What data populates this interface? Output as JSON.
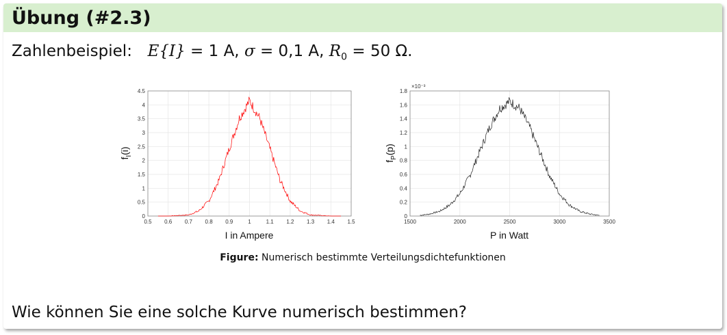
{
  "slide": {
    "title": "Übung (#2.3)",
    "example_intro": "Zahlenbeispiel:",
    "example_parts": {
      "e_label": "E{I}",
      "e_value": "= 1 A,",
      "sigma_label": "σ",
      "sigma_value": "= 0,1 A,",
      "r_label": "R",
      "r_sub": "0",
      "r_value": "= 50 Ω."
    },
    "caption_prefix": "Figure:",
    "caption_text": "Numerisch bestimmte Verteilungsdichtefunktionen",
    "question": "Wie können Sie eine solche Kurve numerisch bestimmen?"
  },
  "colors": {
    "header_bg": "#d8efcf",
    "curve_left": "#ff0000",
    "curve_right": "#222222"
  },
  "chart_data": [
    {
      "type": "line",
      "xlabel": "I in Ampere",
      "ylabel": "f_I(i)",
      "xlim": [
        0.5,
        1.5
      ],
      "ylim": [
        0,
        4.5
      ],
      "xticks": [
        0.5,
        0.6,
        0.7,
        0.8,
        0.9,
        1,
        1.1,
        1.2,
        1.3,
        1.4,
        1.5
      ],
      "yticks": [
        0,
        0.5,
        1,
        1.5,
        2,
        2.5,
        3,
        3.5,
        4,
        4.5
      ],
      "grid": true,
      "series": [
        {
          "color": "#ff0000",
          "x": [
            0.55,
            0.6,
            0.65,
            0.7,
            0.75,
            0.8,
            0.85,
            0.9,
            0.95,
            1.0,
            1.05,
            1.1,
            1.15,
            1.2,
            1.25,
            1.3,
            1.35,
            1.4,
            1.45
          ],
          "y": [
            0.0,
            0.0,
            0.02,
            0.04,
            0.18,
            0.54,
            1.29,
            2.42,
            3.52,
            4.15,
            3.52,
            2.42,
            1.29,
            0.54,
            0.18,
            0.04,
            0.02,
            0.0,
            0.0
          ]
        }
      ]
    },
    {
      "type": "line",
      "xlabel": "P in Watt",
      "ylabel": "f_P(p)",
      "y_exponent_label": "×10⁻³",
      "xlim": [
        1500,
        3500
      ],
      "ylim": [
        0,
        1.8
      ],
      "xticks": [
        1500,
        2000,
        2500,
        3000,
        3500
      ],
      "yticks": [
        0,
        0.2,
        0.4,
        0.6,
        0.8,
        1,
        1.2,
        1.4,
        1.6,
        1.8
      ],
      "grid": true,
      "series": [
        {
          "color": "#222222",
          "x": [
            1600,
            1700,
            1800,
            1900,
            2000,
            2100,
            2200,
            2300,
            2400,
            2500,
            2600,
            2700,
            2800,
            2900,
            3000,
            3100,
            3200,
            3300,
            3400
          ],
          "y": [
            0.01,
            0.03,
            0.07,
            0.16,
            0.32,
            0.58,
            0.93,
            1.28,
            1.55,
            1.65,
            1.55,
            1.28,
            0.93,
            0.58,
            0.32,
            0.16,
            0.07,
            0.03,
            0.01
          ]
        }
      ]
    }
  ]
}
